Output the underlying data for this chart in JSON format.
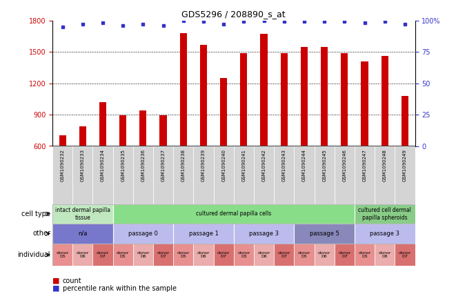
{
  "title": "GDS5296 / 208890_s_at",
  "samples": [
    "GSM1090232",
    "GSM1090233",
    "GSM1090234",
    "GSM1090235",
    "GSM1090236",
    "GSM1090237",
    "GSM1090238",
    "GSM1090239",
    "GSM1090240",
    "GSM1090241",
    "GSM1090242",
    "GSM1090243",
    "GSM1090244",
    "GSM1090245",
    "GSM1090246",
    "GSM1090247",
    "GSM1090248",
    "GSM1090249"
  ],
  "counts": [
    700,
    790,
    1020,
    895,
    940,
    895,
    1680,
    1565,
    1250,
    1490,
    1670,
    1490,
    1550,
    1550,
    1490,
    1410,
    1460,
    1080
  ],
  "percentile": [
    95,
    97,
    98,
    96,
    97,
    96,
    100,
    99,
    97,
    99,
    100,
    99,
    99,
    99,
    99,
    98,
    99,
    97
  ],
  "bar_color": "#cc0000",
  "dot_color": "#3333cc",
  "ylim_left": [
    600,
    1800
  ],
  "ylim_right": [
    0,
    100
  ],
  "yticks_left": [
    600,
    900,
    1200,
    1500,
    1800
  ],
  "yticks_right": [
    0,
    25,
    50,
    75,
    100
  ],
  "ytick_right_labels": [
    "0",
    "25",
    "50",
    "75",
    "100%"
  ],
  "cell_type_groups": [
    {
      "label": "intact dermal papilla\ntissue",
      "start": 0,
      "end": 3,
      "color": "#c0e8c0"
    },
    {
      "label": "cultured dermal papilla cells",
      "start": 3,
      "end": 15,
      "color": "#88dd88"
    },
    {
      "label": "cultured cell dermal\npapilla spheroids",
      "start": 15,
      "end": 18,
      "color": "#88cc88"
    }
  ],
  "other_groups": [
    {
      "label": "n/a",
      "start": 0,
      "end": 3,
      "color": "#7777cc"
    },
    {
      "label": "passage 0",
      "start": 3,
      "end": 6,
      "color": "#bbbbee"
    },
    {
      "label": "passage 1",
      "start": 6,
      "end": 9,
      "color": "#bbbbee"
    },
    {
      "label": "passage 3",
      "start": 9,
      "end": 12,
      "color": "#bbbbee"
    },
    {
      "label": "passage 5",
      "start": 12,
      "end": 15,
      "color": "#8888bb"
    },
    {
      "label": "passage 3",
      "start": 15,
      "end": 18,
      "color": "#bbbbee"
    }
  ],
  "individual_labels": [
    "donor\nD5",
    "donor\nD6",
    "donor\nD7",
    "donor\nD5",
    "donor\nD6",
    "donor\nD7",
    "donor\nD5",
    "donor\nD6",
    "donor\nD7",
    "donor\nD5",
    "donor\nD6",
    "donor\nD7",
    "donor\nD5",
    "donor\nD6",
    "donor\nD7",
    "donor\nD5",
    "donor\nD6",
    "donor\nD7"
  ],
  "individual_colors": [
    "#e89090",
    "#eaacac",
    "#d97070",
    "#e89090",
    "#eaacac",
    "#d97070",
    "#e89090",
    "#eaacac",
    "#d97070",
    "#e89090",
    "#eaacac",
    "#d97070",
    "#e89090",
    "#eaacac",
    "#d97070",
    "#e89090",
    "#eaacac",
    "#d97070"
  ],
  "row_labels": [
    "cell type",
    "other",
    "individual"
  ],
  "background_color": "#ffffff",
  "tick_label_color_left": "#cc0000",
  "tick_label_color_right": "#3333cc",
  "sample_bg_color": "#d4d4d4"
}
